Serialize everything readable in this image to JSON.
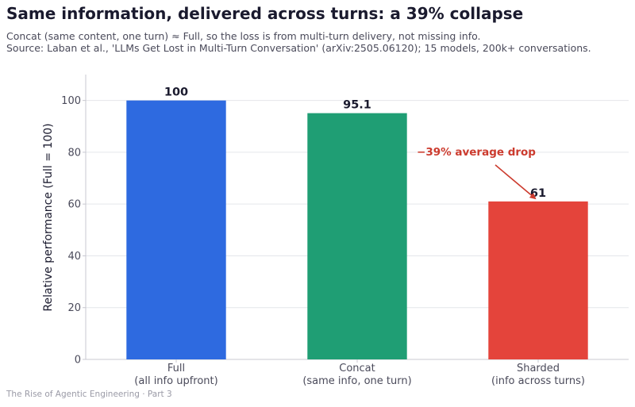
{
  "title": "Same information, delivered across turns: a 39% collapse",
  "subtitle_line1": "Concat (same content, one turn) ≈ Full, so the loss is from multi-turn delivery, not missing info.",
  "subtitle_line2": "Source: Laban et al., 'LLMs Get Lost in Multi-Turn Conversation' (arXiv:2505.06120); 15 models, 200k+ conversations.",
  "footer": "The Rise of Agentic Engineering · Part 3",
  "chart_data": {
    "type": "bar",
    "categories": [
      [
        "Full",
        "(all info upfront)"
      ],
      [
        "Concat",
        "(same info, one turn)"
      ],
      [
        "Sharded",
        "(info across turns)"
      ]
    ],
    "values": [
      100,
      95.1,
      61
    ],
    "value_labels": [
      "100",
      "95.1",
      "61"
    ],
    "colors": [
      "#2e6ae0",
      "#1f9e74",
      "#e4443b"
    ],
    "ylabel": "Relative performance (Full = 100)",
    "ylim": [
      0,
      110
    ],
    "yticks": [
      0,
      20,
      40,
      60,
      80,
      100
    ],
    "grid": "horizontal",
    "annotation": {
      "text": "−39% average drop",
      "target_category_index": 2,
      "color": "#cc3b2e"
    }
  }
}
